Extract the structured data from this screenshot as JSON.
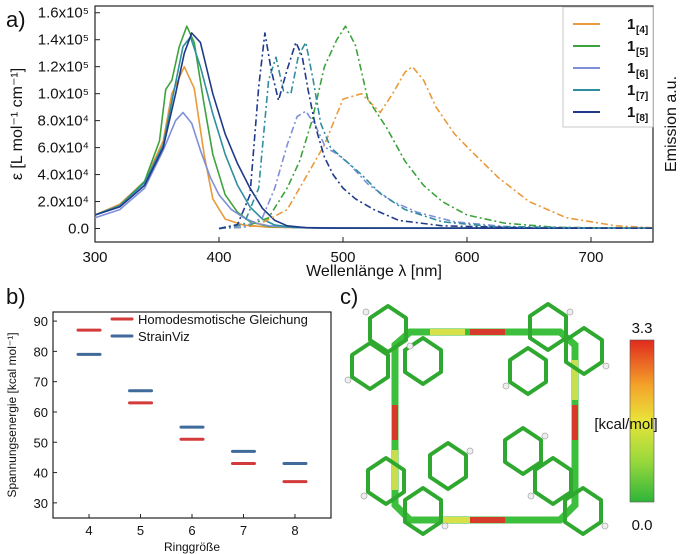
{
  "panels": {
    "a": "a)",
    "b": "b)",
    "c": "c)"
  },
  "chart_data": [
    {
      "type": "line",
      "panel": "a",
      "xlabel": "Wellenlänge λ [nm]",
      "ylabel": "ε [L mol⁻¹ cm⁻¹]",
      "ylabel_right": "Emission a.u.",
      "xlim": [
        300,
        750
      ],
      "ylim": [
        -10000,
        165000
      ],
      "xticks": [
        300,
        400,
        500,
        600,
        700
      ],
      "yticks": [
        {
          "value": 0,
          "label": "0.0"
        },
        {
          "value": 20000,
          "label": "2.0x10⁴"
        },
        {
          "value": 40000,
          "label": "4.0x10⁴"
        },
        {
          "value": 60000,
          "label": "6.0x10⁴"
        },
        {
          "value": 80000,
          "label": "8.0x10⁴"
        },
        {
          "value": 100000,
          "label": "1.0x10⁵"
        },
        {
          "value": 120000,
          "label": "1.2x10⁵"
        },
        {
          "value": 140000,
          "label": "1.4x10⁵"
        },
        {
          "value": 160000,
          "label": "1.6x10⁵"
        }
      ],
      "legend_position": "top-right",
      "series": [
        {
          "name": "1",
          "sub": "[4]",
          "color": "#e89a3c",
          "style": "solid",
          "x": [
            300,
            320,
            340,
            355,
            362,
            366,
            372,
            380,
            388,
            395,
            405,
            420,
            440,
            470,
            520,
            750
          ],
          "y": [
            10000,
            18000,
            35000,
            65000,
            100000,
            108000,
            120000,
            104000,
            55000,
            22000,
            7000,
            2500,
            1000,
            500,
            300,
            200
          ]
        },
        {
          "name": "1",
          "sub": "[5]",
          "color": "#3da33d",
          "style": "solid",
          "x": [
            300,
            320,
            340,
            352,
            357,
            362,
            368,
            374,
            380,
            388,
            395,
            405,
            415,
            425,
            440,
            470,
            520,
            750
          ],
          "y": [
            10000,
            17000,
            35000,
            65000,
            103000,
            110000,
            135000,
            150000,
            138000,
            92000,
            55000,
            25000,
            12000,
            5000,
            1500,
            600,
            300,
            200
          ]
        },
        {
          "name": "1",
          "sub": "[6]",
          "color": "#7f8fd9",
          "style": "solid",
          "x": [
            300,
            320,
            340,
            355,
            365,
            371,
            378,
            385,
            393,
            400,
            410,
            420,
            430,
            440,
            460,
            500,
            750
          ],
          "y": [
            8000,
            14000,
            30000,
            58000,
            80000,
            86000,
            78000,
            58000,
            38000,
            25000,
            14000,
            8000,
            4000,
            2000,
            800,
            300,
            200
          ]
        },
        {
          "name": "1",
          "sub": "[7]",
          "color": "#2f8f9e",
          "style": "solid",
          "x": [
            300,
            320,
            340,
            355,
            365,
            371,
            377,
            385,
            395,
            405,
            415,
            425,
            435,
            445,
            460,
            480,
            520,
            750
          ],
          "y": [
            10000,
            17000,
            34000,
            62000,
            108000,
            135000,
            142000,
            120000,
            85000,
            55000,
            32000,
            16000,
            7000,
            2500,
            800,
            300,
            200,
            200
          ]
        },
        {
          "name": "1",
          "sub": "[8]",
          "color": "#1f3a8a",
          "style": "solid",
          "x": [
            300,
            320,
            340,
            355,
            365,
            372,
            378,
            385,
            395,
            405,
            415,
            425,
            435,
            445,
            455,
            470,
            490,
            750
          ],
          "y": [
            10000,
            16000,
            32000,
            60000,
            100000,
            130000,
            145000,
            138000,
            100000,
            70000,
            48000,
            30000,
            15000,
            6000,
            2000,
            600,
            300,
            200
          ]
        },
        {
          "name": "1",
          "sub": "[4]",
          "color": "#e89a3c",
          "style": "dashdot",
          "x": [
            400,
            430,
            455,
            470,
            485,
            500,
            515,
            530,
            540,
            550,
            556,
            565,
            575,
            590,
            605,
            625,
            650,
            680,
            720,
            750
          ],
          "y": [
            0,
            2000,
            14000,
            38000,
            62000,
            96000,
            100000,
            86000,
            100000,
            116000,
            120000,
            110000,
            90000,
            70000,
            56000,
            38000,
            20000,
            8000,
            2000,
            500
          ]
        },
        {
          "name": "1",
          "sub": "[5]",
          "color": "#3da33d",
          "style": "dashdot",
          "x": [
            400,
            420,
            440,
            455,
            465,
            475,
            485,
            495,
            502,
            510,
            520,
            535,
            550,
            565,
            580,
            600,
            630,
            670,
            720,
            750
          ],
          "y": [
            0,
            1000,
            8000,
            30000,
            50000,
            80000,
            120000,
            140000,
            150000,
            136000,
            96000,
            75000,
            50000,
            32000,
            20000,
            10000,
            4000,
            1000,
            300,
            200
          ]
        },
        {
          "name": "1",
          "sub": "[6]",
          "color": "#7f8fd9",
          "style": "dashdot",
          "x": [
            400,
            420,
            435,
            445,
            455,
            463,
            470,
            478,
            486,
            494,
            505,
            520,
            540,
            560,
            590,
            630,
            700,
            750
          ],
          "y": [
            0,
            1000,
            8000,
            30000,
            62000,
            83000,
            87000,
            76000,
            60000,
            56000,
            48000,
            33000,
            20000,
            12000,
            5000,
            1500,
            300,
            200
          ]
        },
        {
          "name": "1",
          "sub": "[7]",
          "color": "#2f8f9e",
          "style": "dashdot",
          "x": [
            400,
            420,
            432,
            440,
            446,
            452,
            458,
            464,
            470,
            476,
            482,
            490,
            500,
            515,
            530,
            550,
            580,
            620,
            700,
            750
          ],
          "y": [
            0,
            3000,
            30000,
            110000,
            127000,
            102000,
            100000,
            128000,
            138000,
            110000,
            78000,
            60000,
            52000,
            40000,
            26000,
            14000,
            5000,
            1500,
            300,
            200
          ]
        },
        {
          "name": "1",
          "sub": "[8]",
          "color": "#1f3a8a",
          "style": "dashdot",
          "x": [
            400,
            415,
            425,
            432,
            437,
            442,
            448,
            455,
            462,
            467,
            472,
            478,
            485,
            492,
            500,
            510,
            525,
            545,
            580,
            650,
            750
          ],
          "y": [
            0,
            3000,
            25000,
            105000,
            145000,
            118000,
            95000,
            118000,
            138000,
            128000,
            102000,
            75000,
            53000,
            40000,
            30000,
            22000,
            14000,
            6000,
            2000,
            400,
            200
          ]
        }
      ]
    },
    {
      "type": "scatter",
      "panel": "b",
      "xlabel": "Ringgröße",
      "ylabel": "Spannungsenergie [kcal mol⁻¹]",
      "xlim": [
        3.3,
        8.7
      ],
      "ylim": [
        25,
        93
      ],
      "xticks": [
        4,
        5,
        6,
        7,
        8
      ],
      "yticks": [
        30,
        40,
        50,
        60,
        70,
        80,
        90
      ],
      "legend_position": "top",
      "categories": [
        4,
        5,
        6,
        7,
        8
      ],
      "series": [
        {
          "name": "Homodesmotische Gleichung",
          "color": "#d33b3b",
          "values": [
            87,
            63,
            51,
            43,
            37
          ]
        },
        {
          "name": "StrainViz",
          "color": "#3f6a9a",
          "values": [
            79,
            67,
            55,
            47,
            43
          ]
        }
      ]
    }
  ],
  "colorbar": {
    "panel": "c",
    "max_label": "3.3",
    "min_label": "0.0",
    "unit_label": "[kcal/mol]",
    "colors": [
      "#e02a1e",
      "#f4a32a",
      "#e8e43a",
      "#98d83c",
      "#2fb53a"
    ]
  }
}
